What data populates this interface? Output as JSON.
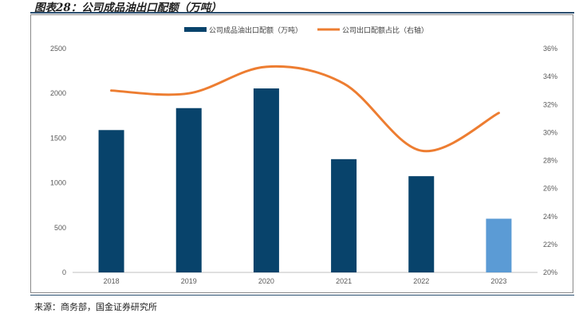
{
  "header": {
    "title": "图表28：公司成品油出口配额（万吨）"
  },
  "footer": {
    "source": "来源：商务部，国金证券研究所"
  },
  "colors": {
    "bar_primary": "#08436b",
    "bar_estimate": "#5b9bd5",
    "line": "#ed7d31",
    "axis": "#bfbfbf"
  },
  "chart_data": {
    "type": "bar",
    "categories": [
      "2018",
      "2019",
      "2020",
      "2021",
      "2022",
      "2023"
    ],
    "series": [
      {
        "name": "公司成品油出口配额（万吨）",
        "type": "bar",
        "axis": "left",
        "values": [
          1590,
          1835,
          2055,
          1265,
          1075,
          600
        ]
      },
      {
        "name": "公司出口配额占比（右轴）",
        "type": "line",
        "axis": "right",
        "smooth": true,
        "values": [
          33.0,
          32.8,
          34.7,
          33.5,
          28.7,
          31.4
        ]
      }
    ],
    "y_left": {
      "min": 0,
      "max": 2500,
      "ticks": [
        "0",
        "500",
        "1000",
        "1500",
        "2000",
        "2500"
      ]
    },
    "y_right": {
      "min": 20,
      "max": 36,
      "ticks": [
        "20%",
        "22%",
        "24%",
        "26%",
        "28%",
        "30%",
        "32%",
        "34%",
        "36%"
      ]
    },
    "legend_position": "top-center",
    "grid": false
  }
}
